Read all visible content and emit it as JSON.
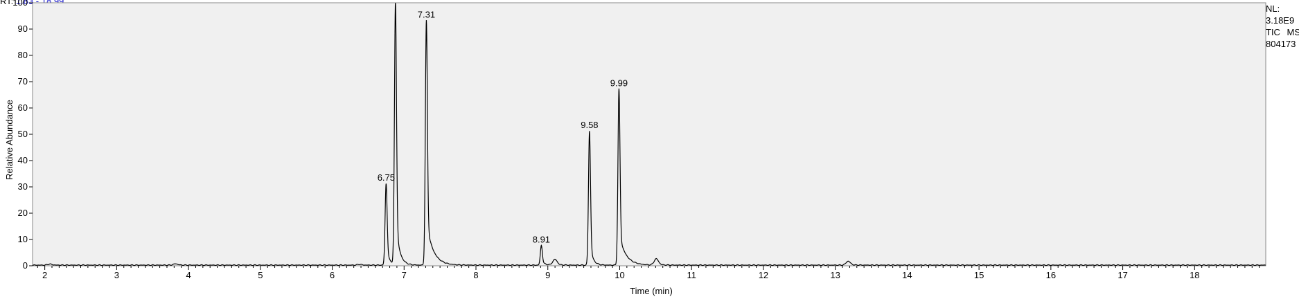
{
  "rt_range": {
    "prefix": "RT:",
    "values": "1.83 - 18.99"
  },
  "info": {
    "nl_label": "NL:",
    "nl_value": "3.18E9",
    "trace": "TIC MS",
    "file": "804173"
  },
  "chart_data": {
    "type": "line",
    "title": "",
    "xlabel": "Time (min)",
    "ylabel": "Relative Abundance",
    "xlim": [
      1.83,
      18.99
    ],
    "ylim": [
      0,
      100
    ],
    "xticks": [
      2,
      3,
      4,
      5,
      6,
      7,
      8,
      9,
      10,
      11,
      12,
      13,
      14,
      15,
      16,
      17,
      18
    ],
    "yticks": [
      0,
      10,
      20,
      30,
      40,
      50,
      60,
      70,
      80,
      90,
      100
    ],
    "grid": false,
    "plot_background": "#f0f0f0",
    "line_color": "#000000",
    "peak_labels": [
      {
        "rt": "6.75",
        "x": 6.75,
        "y": 31
      },
      {
        "rt": "6.88",
        "x": 6.88,
        "y": 100
      },
      {
        "rt": "7.31",
        "x": 7.31,
        "y": 93
      },
      {
        "rt": "8.91",
        "x": 8.91,
        "y": 7.5
      },
      {
        "rt": "9.58",
        "x": 9.58,
        "y": 51
      },
      {
        "rt": "9.99",
        "x": 9.99,
        "y": 67
      }
    ],
    "minor_peaks": [
      {
        "x": 2.07,
        "y": 0.4
      },
      {
        "x": 3.82,
        "y": 0.5
      },
      {
        "x": 6.38,
        "y": 0.3
      },
      {
        "x": 9.1,
        "y": 2.2
      },
      {
        "x": 10.51,
        "y": 2.4
      },
      {
        "x": 13.18,
        "y": 1.5
      }
    ]
  }
}
